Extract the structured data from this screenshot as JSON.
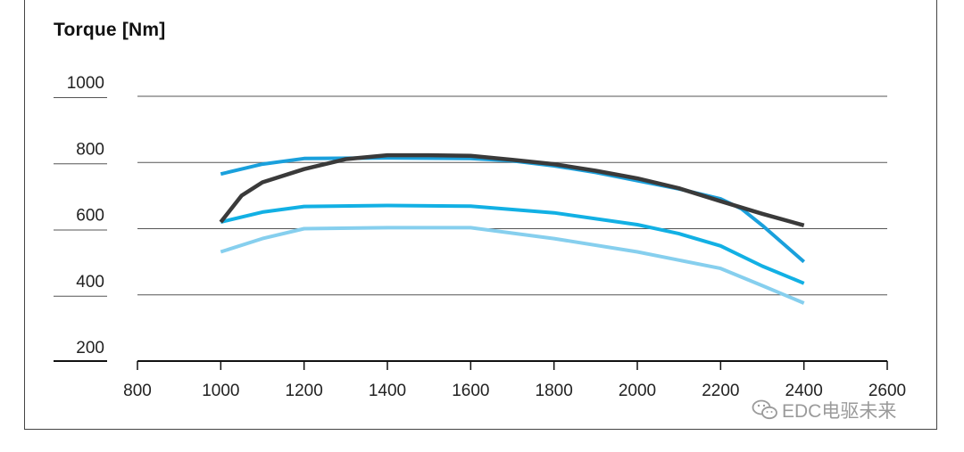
{
  "chart_data": {
    "type": "line",
    "title": "Torque [Nm]",
    "xlabel": "",
    "ylabel": "",
    "xlim": [
      800,
      2600
    ],
    "ylim": [
      200,
      1000
    ],
    "x_ticks": [
      800,
      1000,
      1200,
      1400,
      1600,
      1800,
      2000,
      2200,
      2400,
      2600
    ],
    "y_ticks": [
      200,
      400,
      600,
      800,
      1000
    ],
    "grid": true,
    "series": [
      {
        "color": "#3a3a3a",
        "points": [
          [
            1000,
            620
          ],
          [
            1050,
            700
          ],
          [
            1100,
            740
          ],
          [
            1200,
            780
          ],
          [
            1300,
            810
          ],
          [
            1400,
            822
          ],
          [
            1500,
            822
          ],
          [
            1600,
            820
          ],
          [
            1700,
            808
          ],
          [
            1800,
            795
          ],
          [
            1900,
            775
          ],
          [
            2000,
            752
          ],
          [
            2100,
            722
          ],
          [
            2200,
            683
          ],
          [
            2300,
            645
          ],
          [
            2400,
            610
          ]
        ]
      },
      {
        "color": "#1aa0dc",
        "points": [
          [
            1000,
            765
          ],
          [
            1100,
            795
          ],
          [
            1200,
            812
          ],
          [
            1400,
            814
          ],
          [
            1600,
            812
          ],
          [
            1700,
            805
          ],
          [
            1800,
            790
          ],
          [
            1900,
            770
          ],
          [
            2000,
            745
          ],
          [
            2100,
            720
          ],
          [
            2200,
            690
          ],
          [
            2250,
            660
          ],
          [
            2300,
            610
          ],
          [
            2400,
            500
          ]
        ]
      },
      {
        "color": "#12b0e4",
        "points": [
          [
            1000,
            620
          ],
          [
            1100,
            650
          ],
          [
            1200,
            667
          ],
          [
            1400,
            670
          ],
          [
            1600,
            668
          ],
          [
            1800,
            648
          ],
          [
            2000,
            612
          ],
          [
            2100,
            585
          ],
          [
            2200,
            548
          ],
          [
            2300,
            487
          ],
          [
            2400,
            435
          ]
        ]
      },
      {
        "color": "#86cfee",
        "points": [
          [
            1000,
            530
          ],
          [
            1100,
            570
          ],
          [
            1200,
            600
          ],
          [
            1400,
            603
          ],
          [
            1600,
            603
          ],
          [
            1800,
            570
          ],
          [
            2000,
            530
          ],
          [
            2200,
            480
          ],
          [
            2300,
            428
          ],
          [
            2400,
            375
          ]
        ]
      }
    ]
  },
  "watermark": {
    "text": "EDC电驱未来",
    "icon": "wechat-icon"
  }
}
